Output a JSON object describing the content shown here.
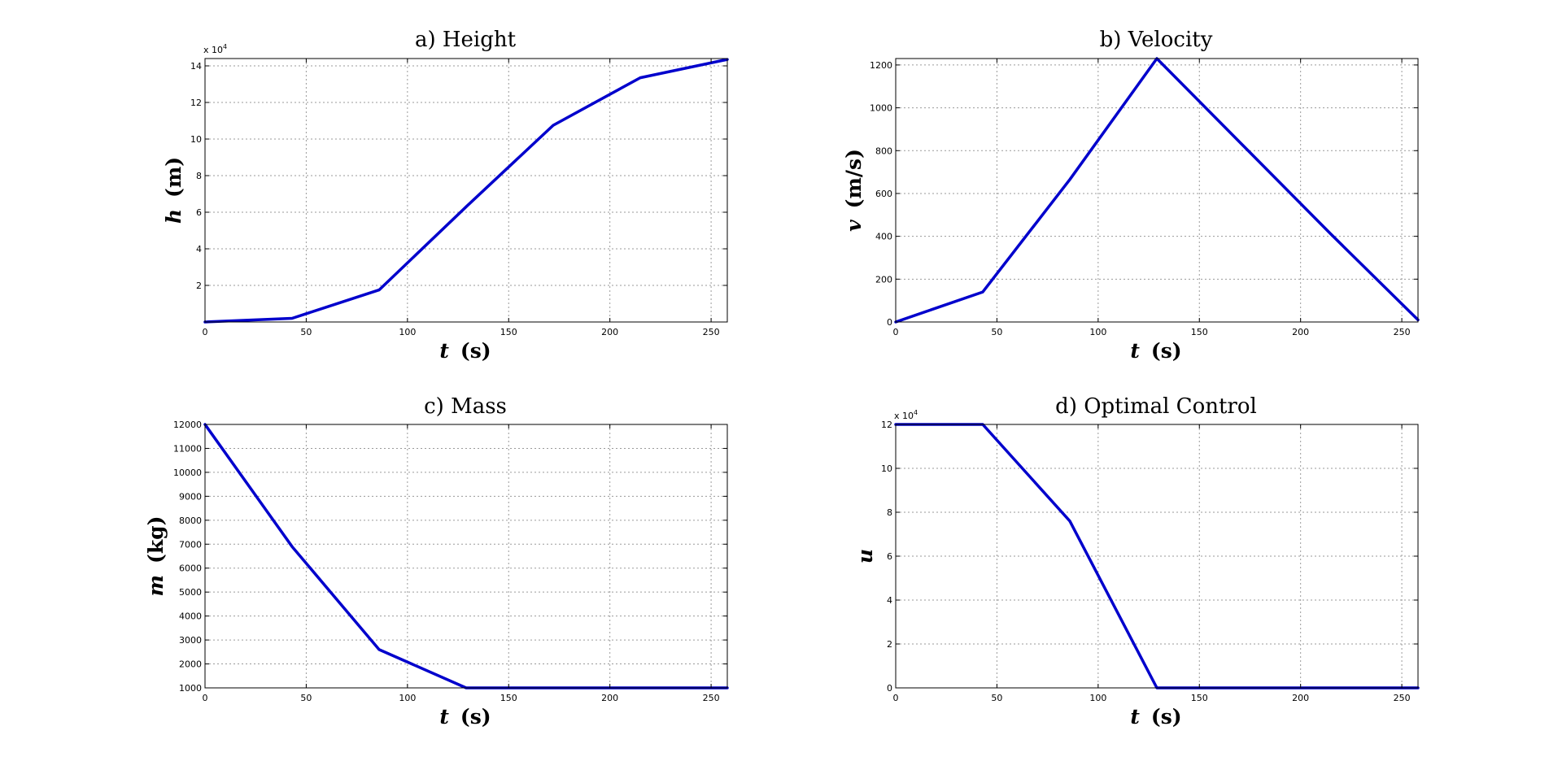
{
  "chart_data": [
    {
      "id": "height",
      "type": "line",
      "title": "a) Height",
      "xlabel": {
        "symbol": "t",
        "unit": "(s)"
      },
      "ylabel": {
        "symbol": "h",
        "unit": "(m)"
      },
      "xlim": [
        0,
        258
      ],
      "ylim": [
        0,
        144000
      ],
      "x_ticks": [
        0,
        50,
        100,
        150,
        200,
        250
      ],
      "y_ticks": [
        20000,
        40000,
        60000,
        80000,
        100000,
        120000,
        140000
      ],
      "y_tick_labels": [
        "2",
        "4",
        "6",
        "8",
        "10",
        "12",
        "14"
      ],
      "y_exponent_label": "x 10",
      "y_exponent_power": "4",
      "grid": true,
      "color": "#0000cc",
      "series": [
        {
          "x": [
            0,
            43,
            86,
            129,
            172,
            215,
            258
          ],
          "y": [
            0,
            2000,
            17500,
            63000,
            107500,
            133500,
            143500
          ]
        }
      ]
    },
    {
      "id": "velocity",
      "type": "line",
      "title": "b) Velocity",
      "xlabel": {
        "symbol": "t",
        "unit": "(s)"
      },
      "ylabel": {
        "symbol": "v",
        "unit": "(m/s)"
      },
      "xlim": [
        0,
        258
      ],
      "ylim": [
        0,
        1230
      ],
      "x_ticks": [
        0,
        50,
        100,
        150,
        200,
        250
      ],
      "y_ticks": [
        0,
        200,
        400,
        600,
        800,
        1000,
        1200
      ],
      "y_tick_labels": [
        "0",
        "200",
        "400",
        "600",
        "800",
        "1000",
        "1200"
      ],
      "y_exponent_label": "",
      "y_exponent_power": "",
      "grid": true,
      "color": "#0000cc",
      "series": [
        {
          "x": [
            0,
            43,
            86,
            129,
            172,
            215,
            258
          ],
          "y": [
            0,
            140,
            665,
            1230,
            820,
            410,
            10
          ]
        }
      ]
    },
    {
      "id": "mass",
      "type": "line",
      "title": "c) Mass",
      "xlabel": {
        "symbol": "t",
        "unit": "(s)"
      },
      "ylabel": {
        "symbol": "m",
        "unit": "(kg)"
      },
      "xlim": [
        0,
        258
      ],
      "ylim": [
        1000,
        12000
      ],
      "x_ticks": [
        0,
        50,
        100,
        150,
        200,
        250
      ],
      "y_ticks": [
        1000,
        2000,
        3000,
        4000,
        5000,
        6000,
        7000,
        8000,
        9000,
        10000,
        11000,
        12000
      ],
      "y_tick_labels": [
        "1000",
        "2000",
        "3000",
        "4000",
        "5000",
        "6000",
        "7000",
        "8000",
        "9000",
        "10000",
        "11000",
        "12000"
      ],
      "y_exponent_label": "",
      "y_exponent_power": "",
      "grid": true,
      "color": "#0000cc",
      "series": [
        {
          "x": [
            0,
            43,
            86,
            129,
            172,
            215,
            258
          ],
          "y": [
            12000,
            6900,
            2600,
            1000,
            1000,
            1000,
            1000
          ]
        }
      ]
    },
    {
      "id": "control",
      "type": "line",
      "title": "d) Optimal Control",
      "xlabel": {
        "symbol": "t",
        "unit": "(s)"
      },
      "ylabel": {
        "symbol": "u",
        "unit": ""
      },
      "xlim": [
        0,
        258
      ],
      "ylim": [
        0,
        120000
      ],
      "x_ticks": [
        0,
        50,
        100,
        150,
        200,
        250
      ],
      "y_ticks": [
        0,
        20000,
        40000,
        60000,
        80000,
        100000,
        120000
      ],
      "y_tick_labels": [
        "0",
        "2",
        "4",
        "6",
        "8",
        "10",
        "12"
      ],
      "y_exponent_label": "x 10",
      "y_exponent_power": "4",
      "grid": true,
      "color": "#0000cc",
      "series": [
        {
          "x": [
            0,
            43,
            86,
            129,
            172,
            215,
            258
          ],
          "y": [
            120000,
            120000,
            76000,
            0,
            0,
            0,
            0
          ]
        }
      ]
    }
  ]
}
